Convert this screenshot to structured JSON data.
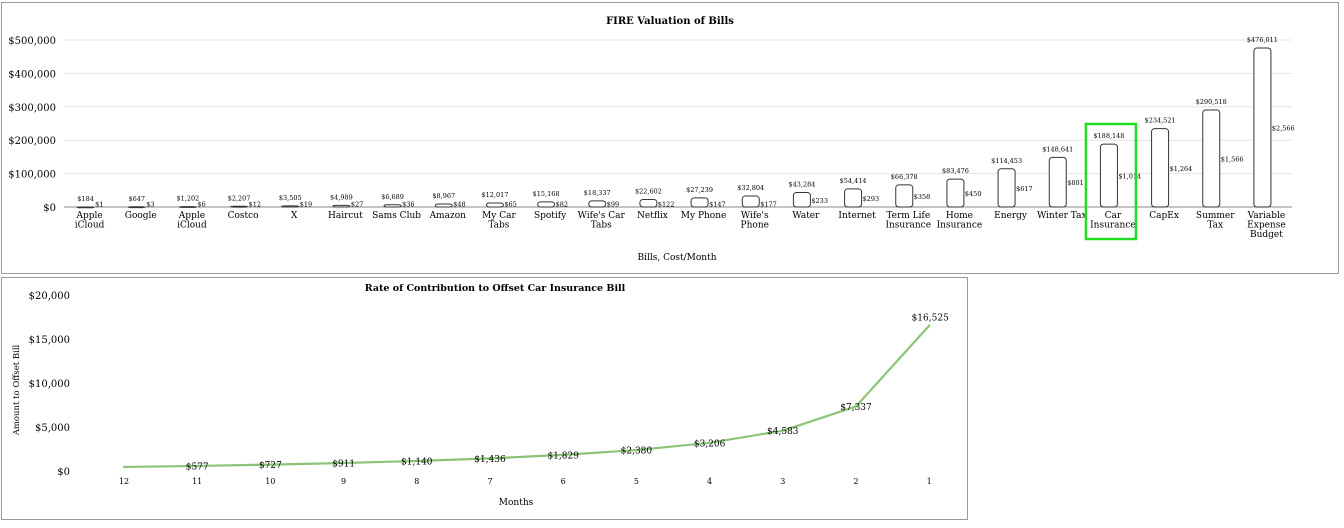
{
  "colors": {
    "line": "#8bc476",
    "highlight": "#22dd22",
    "bar_fill": "#ffffff",
    "bar_stroke": "#333333",
    "grid": "#e4e4e4"
  },
  "chart_data": [
    {
      "type": "bar",
      "title": "FIRE Valuation of Bills",
      "xlabel": "Bills, Cost/Month",
      "ylabel": "",
      "ylim": [
        0,
        500000
      ],
      "yticks": [
        "$0",
        "$100,000",
        "$200,000",
        "$300,000",
        "$400,000",
        "$500,000"
      ],
      "grid": true,
      "categories": [
        "Apple iCloud",
        "Google",
        "Apple iCloud",
        "Costco",
        "X",
        "Haircut",
        "Sams Club",
        "Amazon",
        "My Car Tabs",
        "Spotify",
        "Wife's Car Tabs",
        "Netflix",
        "My Phone",
        "Wife's Phone",
        "Water",
        "Internet",
        "Term Life Insurance",
        "Home Insurance",
        "Energy",
        "Winter Tax",
        "Car Insurance",
        "CapEx",
        "Summer Tax",
        "Variable Expense Budget"
      ],
      "category_lines": [
        [
          "Apple",
          "iCloud"
        ],
        [
          "Google"
        ],
        [
          "Apple",
          "iCloud"
        ],
        [
          "Costco"
        ],
        [
          "X"
        ],
        [
          "Haircut"
        ],
        [
          "Sams Club"
        ],
        [
          "Amazon"
        ],
        [
          "My Car",
          "Tabs"
        ],
        [
          "Spotify"
        ],
        [
          "Wife's Car",
          "Tabs"
        ],
        [
          "Netflix"
        ],
        [
          "My Phone"
        ],
        [
          "Wife's",
          "Phone"
        ],
        [
          "Water"
        ],
        [
          "Internet"
        ],
        [
          "Term Life",
          "Insurance"
        ],
        [
          "Home",
          "Insurance"
        ],
        [
          "Energy"
        ],
        [
          "Winter Tax"
        ],
        [
          "Car",
          "Insurance"
        ],
        [
          "CapEx"
        ],
        [
          "Summer",
          "Tax"
        ],
        [
          "Variable",
          "Expense",
          "Budget"
        ]
      ],
      "series": [
        {
          "name": "",
          "values": [
            184,
            647,
            1202,
            2207,
            3505,
            4989,
            6689,
            8967,
            12017,
            15168,
            18337,
            22602,
            27239,
            32804,
            43284,
            54414,
            66378,
            83476,
            114453,
            148641,
            188148,
            234521,
            290518,
            476011
          ],
          "labels": [
            "$184",
            "$647",
            "$1,202",
            "$2,207",
            "$3,505",
            "$4,989",
            "$6,689",
            "$8,967",
            "$12,017",
            "$15,168",
            "$18,337",
            "$22,602",
            "$27,239",
            "$32,804",
            "$43,284",
            "$54,414",
            "$66,378",
            "$83,476",
            "$114,453",
            "$148,641",
            "$188,148",
            "$234,521",
            "$290,518",
            "$476,011"
          ]
        },
        {
          "name": "",
          "values": [
            1,
            3,
            6,
            12,
            19,
            27,
            36,
            48,
            65,
            82,
            99,
            122,
            147,
            177,
            233,
            293,
            358,
            450,
            617,
            801,
            1014,
            1264,
            1566,
            2566
          ],
          "labels": [
            "$1",
            "$3",
            "$6",
            "$12",
            "$19",
            "$27",
            "$36",
            "$48",
            "$65",
            "$82",
            "$99",
            "$122",
            "$147",
            "$177",
            "$233",
            "$293",
            "$358",
            "$450",
            "$617",
            "$801",
            "$1,014",
            "$1,264",
            "$1,566",
            "$2,566"
          ]
        }
      ],
      "highlight_category": "Car Insurance"
    },
    {
      "type": "line",
      "title": "Rate of Contribution to Offset Car Insurance Bill",
      "xlabel": "Months",
      "ylabel": "Amount to Offset Bill",
      "ylim": [
        0,
        20000
      ],
      "yticks": [
        "$0",
        "$5,000",
        "$10,000",
        "$15,000",
        "$20,000"
      ],
      "grid": false,
      "x": [
        "12",
        "11",
        "10",
        "9",
        "8",
        "7",
        "6",
        "5",
        "4",
        "3",
        "2",
        "1"
      ],
      "series": [
        {
          "name": "",
          "values": [
            459,
            577,
            727,
            911,
            1140,
            1436,
            1829,
            2380,
            3206,
            4583,
            7337,
            16525
          ],
          "labels": [
            "",
            "$577",
            "$727",
            "$911",
            "$1,140",
            "$1,436",
            "$1,829",
            "$2,380",
            "$3,206",
            "$4,583",
            "$7,337",
            "$16,525"
          ]
        }
      ]
    }
  ]
}
